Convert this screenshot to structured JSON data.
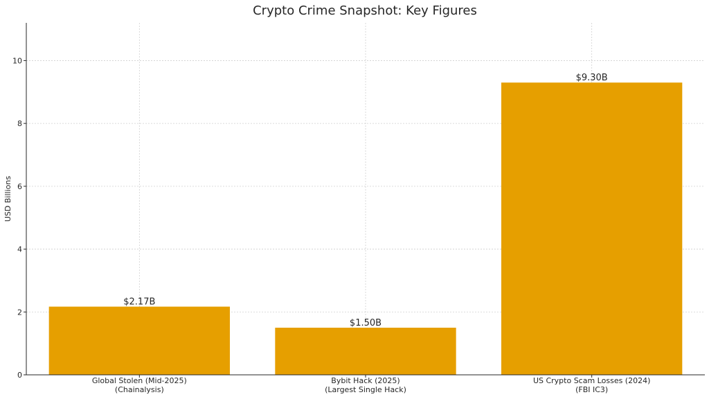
{
  "chart_data": {
    "type": "bar",
    "title": "Crypto Crime Snapshot: Key Figures",
    "xlabel": "",
    "ylabel": "USD Billions",
    "categories": [
      [
        "Global Stolen (Mid-2025)",
        "(Chainalysis)"
      ],
      [
        "Bybit Hack (2025)",
        "(Largest Single Hack)"
      ],
      [
        "US Crypto Scam Losses (2024)",
        "(FBI IC3)"
      ]
    ],
    "values": [
      2.17,
      1.5,
      9.3
    ],
    "data_labels": [
      "$2.17B",
      "$1.50B",
      "$9.30B"
    ],
    "ylim": [
      0,
      11.2
    ],
    "yticks": [
      0,
      2,
      4,
      6,
      8,
      10
    ],
    "grid": true,
    "legend": "none",
    "colors": {
      "bar": "#e69f00"
    }
  }
}
